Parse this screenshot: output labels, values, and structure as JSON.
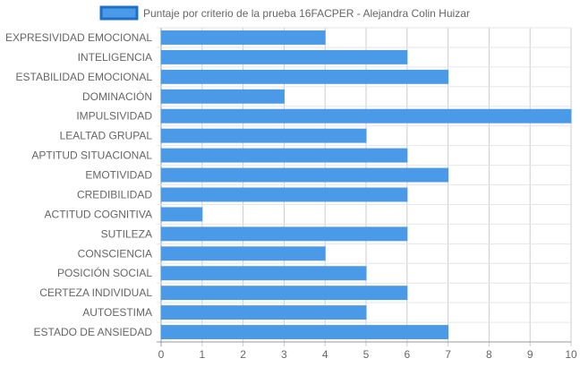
{
  "chart_data": {
    "type": "bar",
    "orientation": "horizontal",
    "series": [
      {
        "name": "Puntaje por criterio de la prueba 16FACPER - Alejandra Colin Huizar",
        "color": "#4a9ae8",
        "border_color": "#1e6fc8",
        "values": [
          4,
          6,
          7,
          3,
          10,
          5,
          6,
          7,
          6,
          1,
          6,
          4,
          5,
          6,
          5,
          7
        ]
      }
    ],
    "categories": [
      "EXPRESIVIDAD EMOCIONAL",
      "INTELIGENCIA",
      "ESTABILIDAD EMOCIONAL",
      "DOMINACIÓN",
      "IMPULSIVIDAD",
      "LEALTAD GRUPAL",
      "APTITUD SITUACIONAL",
      "EMOTIVIDAD",
      "CREDIBILIDAD",
      "ACTITUD COGNITIVA",
      "SUTILEZA",
      "CONSCIENCIA",
      "POSICIÓN SOCIAL",
      "CERTEZA INDIVIDUAL",
      "AUTOESTIMA",
      "ESTADO DE ANSIEDAD"
    ],
    "x_ticks": [
      "0",
      "1",
      "2",
      "3",
      "4",
      "5",
      "6",
      "7",
      "8",
      "9",
      "10"
    ],
    "xlim": [
      0,
      10
    ],
    "grid": true,
    "legend_position": "top"
  }
}
